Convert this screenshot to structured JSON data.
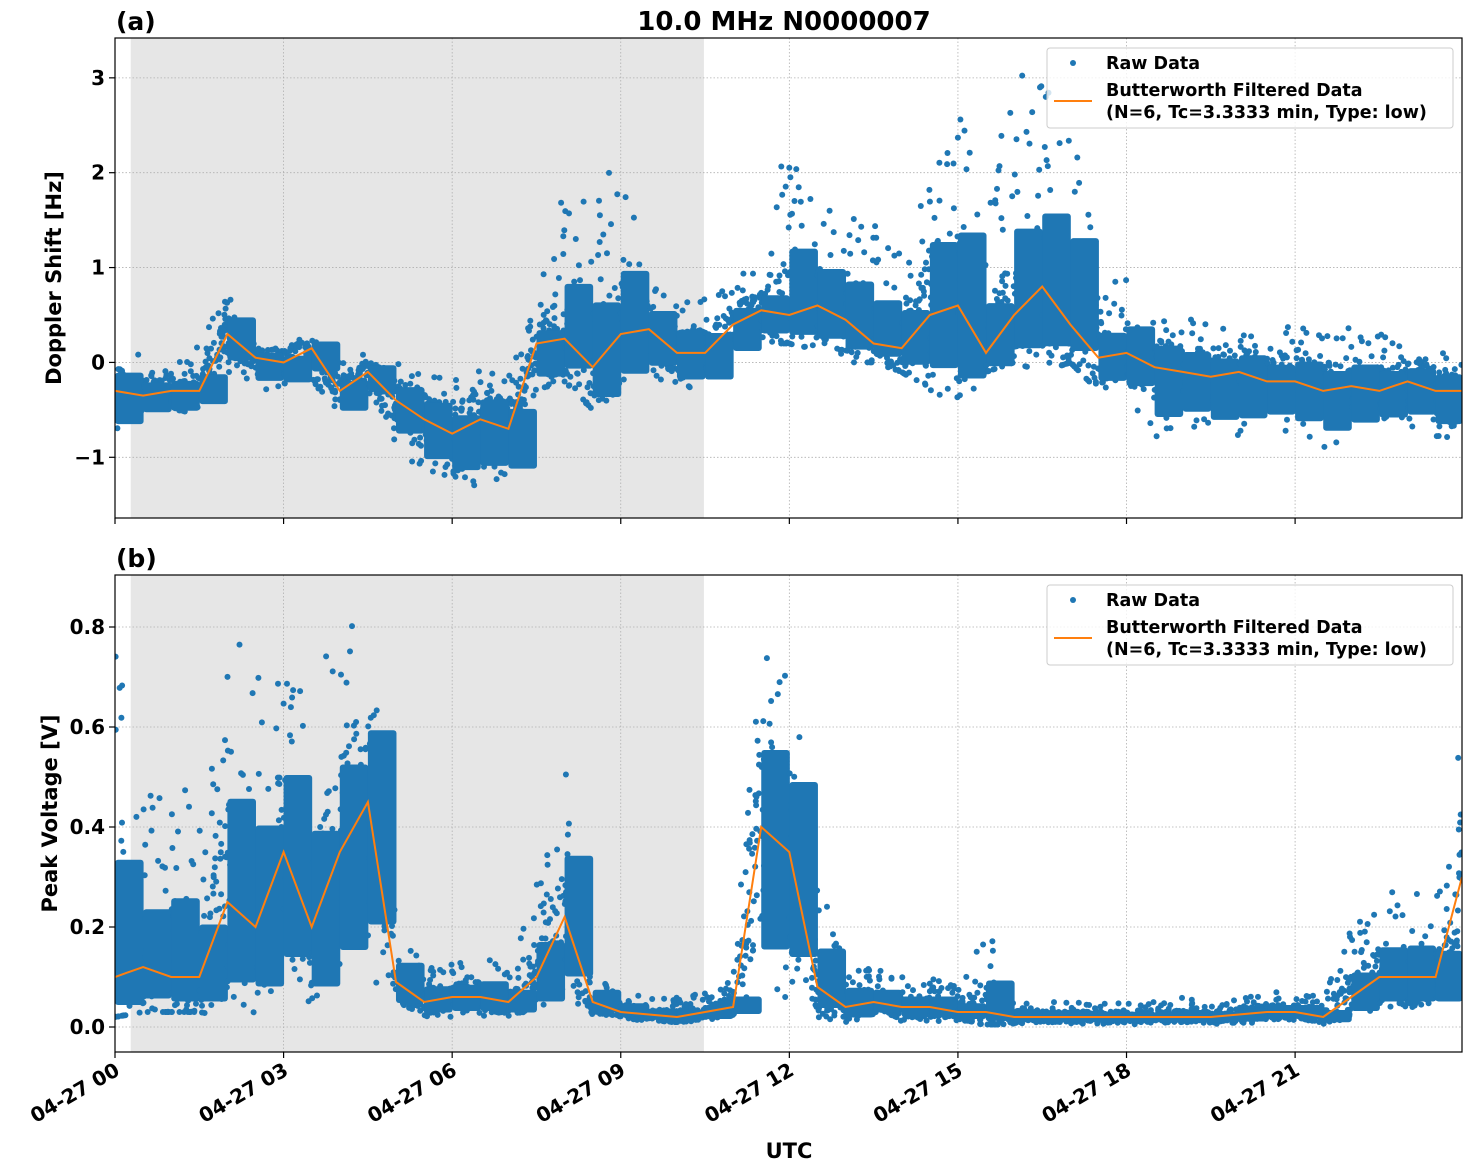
{
  "figure": {
    "title": "10.0 MHz N0000007",
    "xlabel": "UTC"
  },
  "colors": {
    "raw": "#1f77b4",
    "filtered": "#ff7f0e",
    "night_shading": "#e6e6e6",
    "grid": "#b0b0b0"
  },
  "chart_data": [
    {
      "type": "scatter",
      "panel_label": "(a)",
      "ylabel": "Doppler Shift [Hz]",
      "x_unit": "hours UTC on 04-27",
      "xlim": [
        0,
        23.97
      ],
      "ylim": [
        -1.64,
        3.42
      ],
      "xticks": [
        0,
        3,
        6,
        9,
        12,
        15,
        18,
        21
      ],
      "xtick_labels": [
        "04-27 00",
        "04-27 03",
        "04-27 06",
        "04-27 09",
        "04-27 12",
        "04-27 15",
        "04-27 18",
        "04-27 21"
      ],
      "yticks": [
        -1,
        0,
        1,
        2,
        3
      ],
      "ytick_labels": [
        "−1",
        "0",
        "1",
        "2",
        "3"
      ],
      "grid": true,
      "shaded_interval_hours": [
        0.28,
        10.48
      ],
      "legend": {
        "placement": "top-right",
        "entries": [
          "Raw Data",
          "Butterworth Filtered Data",
          "(N=6, Tc=3.3333 min, Type: low)"
        ]
      },
      "x": [
        0,
        0.5,
        1,
        1.5,
        2,
        2.5,
        3,
        3.5,
        4,
        4.5,
        5,
        5.5,
        6,
        6.5,
        7,
        7.5,
        8,
        8.5,
        9,
        9.5,
        10,
        10.5,
        11,
        11.5,
        12,
        12.5,
        13,
        13.5,
        14,
        14.5,
        15,
        15.5,
        16,
        16.5,
        17,
        17.5,
        18,
        18.5,
        19,
        19.5,
        20,
        20.5,
        21,
        21.5,
        22,
        22.5,
        23,
        23.5,
        23.97
      ],
      "series": [
        {
          "name": "Butterworth Filtered Data",
          "values": [
            -0.3,
            -0.35,
            -0.3,
            -0.3,
            0.3,
            0.05,
            0.0,
            0.15,
            -0.3,
            -0.1,
            -0.4,
            -0.6,
            -0.75,
            -0.6,
            -0.7,
            0.2,
            0.25,
            -0.05,
            0.3,
            0.35,
            0.1,
            0.1,
            0.4,
            0.55,
            0.5,
            0.6,
            0.45,
            0.2,
            0.15,
            0.5,
            0.6,
            0.1,
            0.5,
            0.8,
            0.4,
            0.05,
            0.1,
            -0.05,
            -0.1,
            -0.15,
            -0.1,
            -0.2,
            -0.2,
            -0.3,
            -0.25,
            -0.3,
            -0.2,
            -0.3,
            -0.3
          ]
        },
        {
          "name": "Raw Data",
          "range_min": [
            -0.8,
            -0.6,
            -0.6,
            -0.5,
            -0.1,
            -0.3,
            -0.3,
            -0.2,
            -0.6,
            -0.4,
            -0.9,
            -1.2,
            -1.3,
            -1.3,
            -1.3,
            -0.3,
            -0.2,
            -0.5,
            -0.3,
            -0.2,
            -0.3,
            -0.3,
            0.0,
            0.2,
            0.2,
            0.1,
            0.0,
            0.0,
            -0.1,
            -0.3,
            -0.5,
            -0.1,
            0.0,
            -0.1,
            0.0,
            -0.3,
            -0.4,
            -0.8,
            -0.7,
            -0.8,
            -0.8,
            -0.7,
            -0.8,
            -0.9,
            -0.8,
            -0.7,
            -0.7,
            -0.8,
            -0.8
          ],
          "range_max": [
            0.25,
            0.05,
            0.0,
            0.2,
            0.8,
            0.2,
            0.2,
            0.35,
            0.0,
            0.1,
            0.0,
            -0.1,
            -0.2,
            0.0,
            -0.1,
            0.6,
            1.9,
            1.9,
            2.2,
            0.9,
            0.8,
            0.7,
            0.9,
            1.0,
            2.5,
            1.7,
            1.6,
            1.5,
            1.3,
            2.7,
            2.8,
            1.6,
            3.1,
            3.0,
            3.0,
            0.8,
            0.9,
            0.6,
            0.5,
            0.4,
            0.4,
            0.3,
            0.4,
            0.3,
            0.4,
            0.3,
            0.2,
            0.2,
            0.0
          ]
        }
      ]
    },
    {
      "type": "scatter",
      "panel_label": "(b)",
      "ylabel": "Peak Voltage [V]",
      "x_unit": "hours UTC on 04-27",
      "xlim": [
        0,
        23.97
      ],
      "ylim": [
        -0.05,
        0.904
      ],
      "xticks": [
        0,
        3,
        6,
        9,
        12,
        15,
        18,
        21
      ],
      "xtick_labels": [
        "04-27 00",
        "04-27 03",
        "04-27 06",
        "04-27 09",
        "04-27 12",
        "04-27 15",
        "04-27 18",
        "04-27 21"
      ],
      "yticks": [
        0,
        0.2,
        0.4,
        0.6,
        0.8
      ],
      "ytick_labels": [
        "0.0",
        "0.2",
        "0.4",
        "0.6",
        "0.8"
      ],
      "grid": true,
      "shaded_interval_hours": [
        0.28,
        10.48
      ],
      "legend": {
        "placement": "top-right",
        "entries": [
          "Raw Data",
          "Butterworth Filtered Data",
          "(N=6, Tc=3.3333 min, Type: low)"
        ]
      },
      "x": [
        0,
        0.5,
        1,
        1.5,
        2,
        2.5,
        3,
        3.5,
        4,
        4.5,
        5,
        5.5,
        6,
        6.5,
        7,
        7.5,
        8,
        8.5,
        9,
        9.5,
        10,
        10.5,
        11,
        11.5,
        12,
        12.5,
        13,
        13.5,
        14,
        14.5,
        15,
        15.5,
        16,
        16.5,
        17,
        17.5,
        18,
        18.5,
        19,
        19.5,
        20,
        20.5,
        21,
        21.5,
        22,
        22.5,
        23,
        23.5,
        23.97
      ],
      "series": [
        {
          "name": "Butterworth Filtered Data",
          "values": [
            0.1,
            0.12,
            0.1,
            0.1,
            0.25,
            0.2,
            0.35,
            0.2,
            0.35,
            0.45,
            0.09,
            0.05,
            0.06,
            0.06,
            0.05,
            0.1,
            0.22,
            0.05,
            0.03,
            0.025,
            0.02,
            0.03,
            0.04,
            0.4,
            0.35,
            0.08,
            0.04,
            0.05,
            0.04,
            0.04,
            0.03,
            0.03,
            0.02,
            0.02,
            0.02,
            0.02,
            0.02,
            0.02,
            0.02,
            0.02,
            0.025,
            0.03,
            0.03,
            0.02,
            0.06,
            0.1,
            0.1,
            0.1,
            0.3
          ]
        },
        {
          "name": "Raw Data",
          "range_min": [
            0.02,
            0.03,
            0.03,
            0.03,
            0.02,
            0.03,
            0.05,
            0.03,
            0.07,
            0.1,
            0.03,
            0.02,
            0.02,
            0.02,
            0.02,
            0.03,
            0.05,
            0.02,
            0.02,
            0.01,
            0.01,
            0.01,
            0.02,
            0.05,
            0.05,
            0.02,
            0.01,
            0.02,
            0.01,
            0.01,
            0.01,
            0.005,
            0.005,
            0.005,
            0.005,
            0.005,
            0.005,
            0.005,
            0.005,
            0.005,
            0.005,
            0.01,
            0.01,
            0.005,
            0.02,
            0.03,
            0.03,
            0.03,
            0.05
          ],
          "range_max": [
            0.77,
            0.45,
            0.55,
            0.4,
            0.84,
            0.78,
            0.79,
            0.75,
            0.85,
            0.86,
            0.2,
            0.14,
            0.13,
            0.15,
            0.12,
            0.3,
            0.57,
            0.12,
            0.08,
            0.06,
            0.06,
            0.07,
            0.1,
            0.84,
            0.75,
            0.3,
            0.15,
            0.12,
            0.1,
            0.1,
            0.08,
            0.21,
            0.06,
            0.05,
            0.05,
            0.05,
            0.05,
            0.05,
            0.06,
            0.05,
            0.06,
            0.07,
            0.07,
            0.06,
            0.2,
            0.27,
            0.28,
            0.25,
            0.64
          ]
        }
      ]
    }
  ]
}
